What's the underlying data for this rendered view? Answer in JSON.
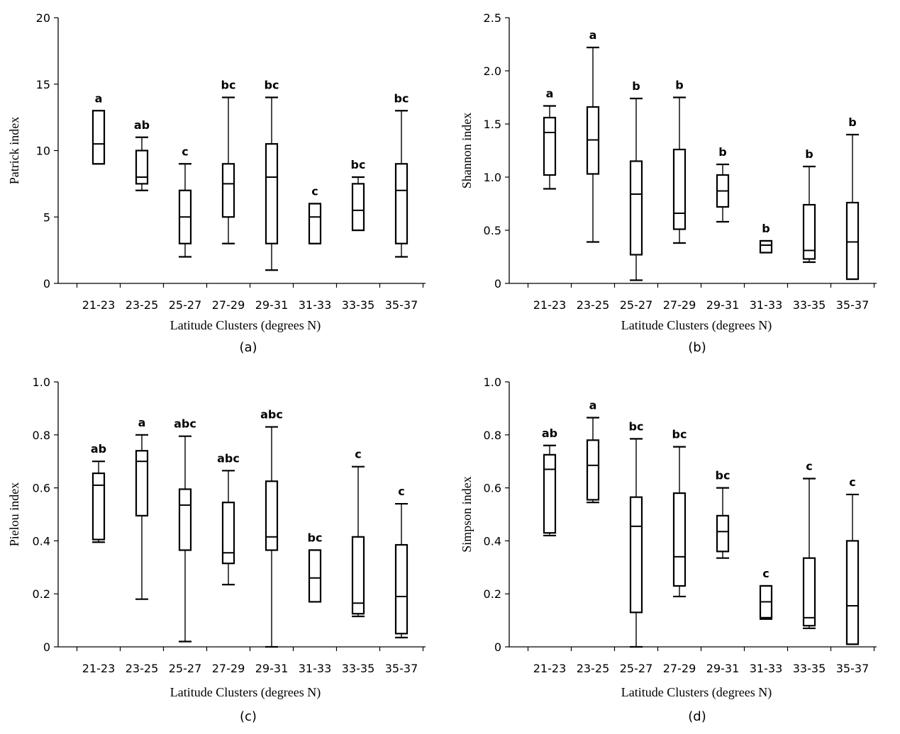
{
  "chart_data": [
    {
      "type": "box",
      "panel_label": "(a)",
      "ylabel": "Patrick index",
      "xlabel": "Latitude Clusters (degrees N)",
      "ylim": [
        0,
        20
      ],
      "yticks": [
        "0",
        "5",
        "10",
        "15",
        "20"
      ],
      "categories": [
        "21-23",
        "23-25",
        "25-27",
        "27-29",
        "29-31",
        "31-33",
        "33-35",
        "35-37"
      ],
      "boxes": [
        {
          "min": 9,
          "q1": 9,
          "median": 10.5,
          "q3": 13,
          "max": 13,
          "label": "a"
        },
        {
          "min": 7,
          "q1": 7.5,
          "median": 8,
          "q3": 10,
          "max": 11,
          "label": "ab"
        },
        {
          "min": 2,
          "q1": 3,
          "median": 5,
          "q3": 7,
          "max": 9,
          "label": "c"
        },
        {
          "min": 3,
          "q1": 5,
          "median": 7.5,
          "q3": 9,
          "max": 14,
          "label": "bc"
        },
        {
          "min": 1,
          "q1": 3,
          "median": 8,
          "q3": 10.5,
          "max": 14,
          "label": "bc"
        },
        {
          "min": 3,
          "q1": 3,
          "median": 5,
          "q3": 6,
          "max": 6,
          "label": "c"
        },
        {
          "min": 4,
          "q1": 4,
          "median": 5.5,
          "q3": 7.5,
          "max": 8,
          "label": "bc"
        },
        {
          "min": 2,
          "q1": 3,
          "median": 7,
          "q3": 9,
          "max": 13,
          "label": "bc"
        }
      ]
    },
    {
      "type": "box",
      "panel_label": "(b)",
      "ylabel": "Shannon index",
      "xlabel": "Latitude Clusters (degrees N)",
      "ylim": [
        0,
        2.5
      ],
      "yticks": [
        "0",
        "0.5",
        "1.0",
        "1.5",
        "2.0",
        "2.5"
      ],
      "categories": [
        "21-23",
        "23-25",
        "25-27",
        "27-29",
        "29-31",
        "31-33",
        "33-35",
        "35-37"
      ],
      "boxes": [
        {
          "min": 0.89,
          "q1": 1.02,
          "median": 1.42,
          "q3": 1.56,
          "max": 1.67,
          "label": "a"
        },
        {
          "min": 0.39,
          "q1": 1.03,
          "median": 1.35,
          "q3": 1.66,
          "max": 2.22,
          "label": "a"
        },
        {
          "min": 0.03,
          "q1": 0.27,
          "median": 0.84,
          "q3": 1.15,
          "max": 1.74,
          "label": "b"
        },
        {
          "min": 0.38,
          "q1": 0.51,
          "median": 0.66,
          "q3": 1.26,
          "max": 1.75,
          "label": "b"
        },
        {
          "min": 0.58,
          "q1": 0.72,
          "median": 0.87,
          "q3": 1.02,
          "max": 1.12,
          "label": "b"
        },
        {
          "min": 0.29,
          "q1": 0.29,
          "median": 0.36,
          "q3": 0.4,
          "max": 0.4,
          "label": "b"
        },
        {
          "min": 0.2,
          "q1": 0.23,
          "median": 0.31,
          "q3": 0.74,
          "max": 1.1,
          "label": "b"
        },
        {
          "min": 0.04,
          "q1": 0.04,
          "median": 0.39,
          "q3": 0.76,
          "max": 1.4,
          "label": "b"
        }
      ]
    },
    {
      "type": "box",
      "panel_label": "(c)",
      "ylabel": "Pielou index",
      "xlabel": "Latitude Clusters (degrees N)",
      "ylim": [
        0,
        1.0
      ],
      "yticks": [
        "0",
        "0.2",
        "0.4",
        "0.6",
        "0.8",
        "1.0"
      ],
      "categories": [
        "21-23",
        "23-25",
        "25-27",
        "27-29",
        "29-31",
        "31-33",
        "33-35",
        "35-37"
      ],
      "boxes": [
        {
          "min": 0.395,
          "q1": 0.405,
          "median": 0.61,
          "q3": 0.655,
          "max": 0.7,
          "label": "ab"
        },
        {
          "min": 0.18,
          "q1": 0.495,
          "median": 0.7,
          "q3": 0.74,
          "max": 0.8,
          "label": "a"
        },
        {
          "min": 0.02,
          "q1": 0.365,
          "median": 0.535,
          "q3": 0.595,
          "max": 0.795,
          "label": "abc"
        },
        {
          "min": 0.235,
          "q1": 0.315,
          "median": 0.355,
          "q3": 0.545,
          "max": 0.665,
          "label": "abc"
        },
        {
          "min": 0.0,
          "q1": 0.365,
          "median": 0.415,
          "q3": 0.625,
          "max": 0.83,
          "label": "abc"
        },
        {
          "min": 0.17,
          "q1": 0.17,
          "median": 0.26,
          "q3": 0.365,
          "max": 0.365,
          "label": "bc"
        },
        {
          "min": 0.115,
          "q1": 0.125,
          "median": 0.165,
          "q3": 0.415,
          "max": 0.68,
          "label": "c"
        },
        {
          "min": 0.035,
          "q1": 0.05,
          "median": 0.19,
          "q3": 0.385,
          "max": 0.54,
          "label": "c"
        }
      ]
    },
    {
      "type": "box",
      "panel_label": "(d)",
      "ylabel": "Simpson index",
      "xlabel": "Latitude Clusters (degrees N)",
      "ylim": [
        0,
        1.0
      ],
      "yticks": [
        "0",
        "0.2",
        "0.4",
        "0.6",
        "0.8",
        "1.0"
      ],
      "categories": [
        "21-23",
        "23-25",
        "25-27",
        "27-29",
        "29-31",
        "31-33",
        "33-35",
        "35-37"
      ],
      "boxes": [
        {
          "min": 0.42,
          "q1": 0.43,
          "median": 0.67,
          "q3": 0.725,
          "max": 0.76,
          "label": "ab"
        },
        {
          "min": 0.545,
          "q1": 0.555,
          "median": 0.685,
          "q3": 0.78,
          "max": 0.865,
          "label": "a"
        },
        {
          "min": 0.0,
          "q1": 0.13,
          "median": 0.455,
          "q3": 0.565,
          "max": 0.785,
          "label": "bc"
        },
        {
          "min": 0.19,
          "q1": 0.23,
          "median": 0.34,
          "q3": 0.58,
          "max": 0.755,
          "label": "bc"
        },
        {
          "min": 0.335,
          "q1": 0.36,
          "median": 0.435,
          "q3": 0.495,
          "max": 0.6,
          "label": "bc"
        },
        {
          "min": 0.105,
          "q1": 0.11,
          "median": 0.17,
          "q3": 0.23,
          "max": 0.23,
          "label": "c"
        },
        {
          "min": 0.07,
          "q1": 0.08,
          "median": 0.11,
          "q3": 0.335,
          "max": 0.635,
          "label": "c"
        },
        {
          "min": 0.01,
          "q1": 0.01,
          "median": 0.155,
          "q3": 0.4,
          "max": 0.575,
          "label": "c"
        }
      ]
    }
  ]
}
